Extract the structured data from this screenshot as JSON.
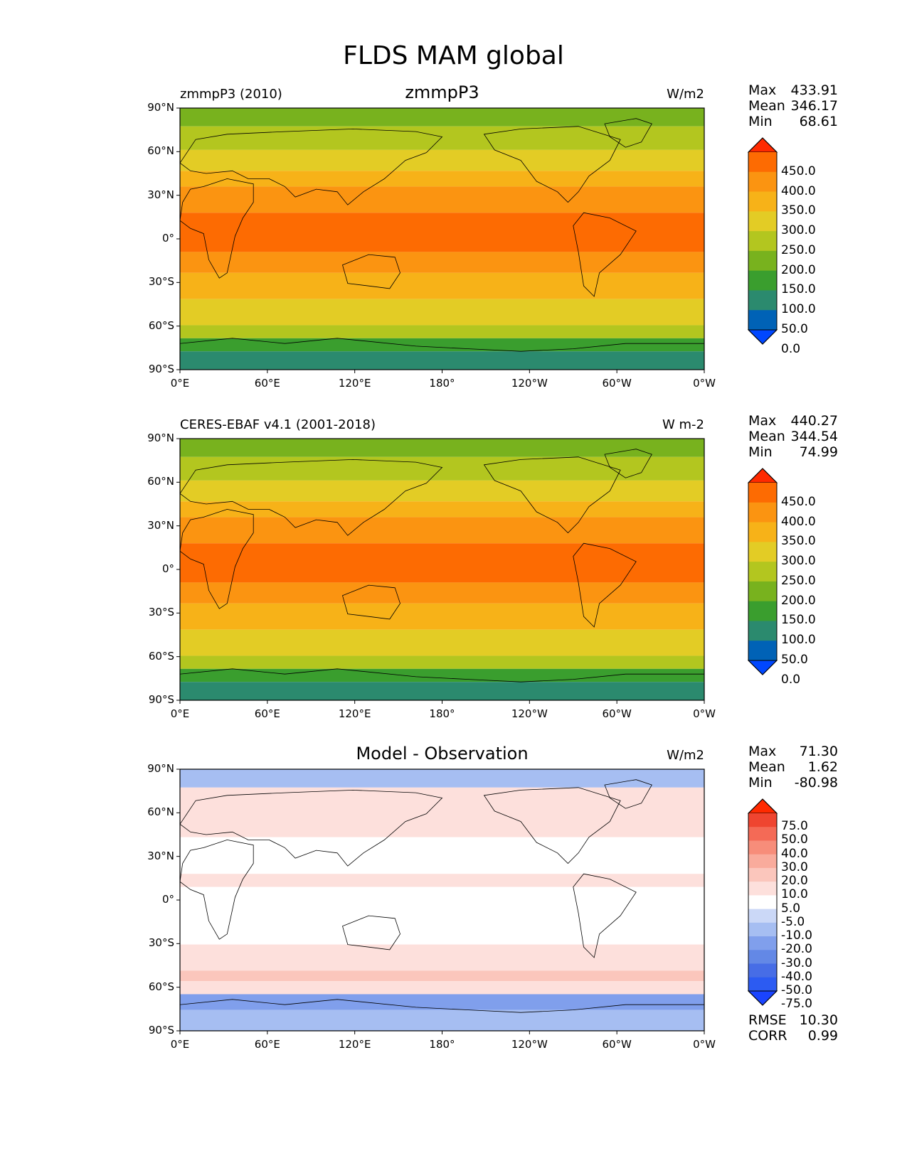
{
  "figure": {
    "title": "FLDS MAM global"
  },
  "x_ticks": [
    "0°E",
    "60°E",
    "120°E",
    "180°",
    "120°W",
    "60°W",
    "0°W"
  ],
  "y_ticks": [
    "90°N",
    "60°N",
    "30°N",
    "0°",
    "30°S",
    "60°S",
    "90°S"
  ],
  "colors": {
    "abs_levels": [
      "#0047ff",
      "#0062b6",
      "#2b8a6e",
      "#3a9e2e",
      "#78b21e",
      "#b3c61f",
      "#e3cc25",
      "#f7b218",
      "#fb9411",
      "#fd6b02",
      "#ff2a00"
    ],
    "diff_levels": [
      "#1a44ff",
      "#2c5bf2",
      "#476de6",
      "#6388e6",
      "#809fec",
      "#a6bef2",
      "#cbd8f7",
      "#ffffff",
      "#fde0dc",
      "#fbc6bc",
      "#f9ab9c",
      "#f78d7a",
      "#f46a56",
      "#ef4530",
      "#ff2a00"
    ],
    "land_outline": "#000000"
  },
  "panels": [
    {
      "left_label": "zmmpP3 (2010)",
      "center_label": "zmmpP3",
      "units": "W/m2",
      "stats": [
        [
          "Max",
          "433.91"
        ],
        [
          "Mean",
          "346.17"
        ],
        [
          "Min",
          "68.61"
        ]
      ],
      "colorbar_labels": [
        "450.0",
        "400.0",
        "350.0",
        "300.0",
        "250.0",
        "200.0",
        "150.0",
        "100.0",
        "50.0",
        "0.0"
      ]
    },
    {
      "left_label": "CERES-EBAF v4.1 (2001-2018)",
      "center_label": "",
      "units": "W m-2",
      "stats": [
        [
          "Max",
          "440.27"
        ],
        [
          "Mean",
          "344.54"
        ],
        [
          "Min",
          "74.99"
        ]
      ],
      "colorbar_labels": [
        "450.0",
        "400.0",
        "350.0",
        "300.0",
        "250.0",
        "200.0",
        "150.0",
        "100.0",
        "50.0",
        "0.0"
      ]
    },
    {
      "left_label": "",
      "center_label": "Model - Observation",
      "units": "W/m2",
      "stats": [
        [
          "Max",
          "71.30"
        ],
        [
          "Mean",
          "1.62"
        ],
        [
          "Min",
          "-80.98"
        ]
      ],
      "colorbar_labels": [
        "75.0",
        "50.0",
        "40.0",
        "30.0",
        "20.0",
        "10.0",
        "5.0",
        "-5.0",
        "-10.0",
        "-20.0",
        "-30.0",
        "-40.0",
        "-50.0",
        "-75.0"
      ],
      "extra_stats": [
        [
          "RMSE",
          "10.30"
        ],
        [
          "CORR",
          "0.99"
        ]
      ]
    }
  ]
}
